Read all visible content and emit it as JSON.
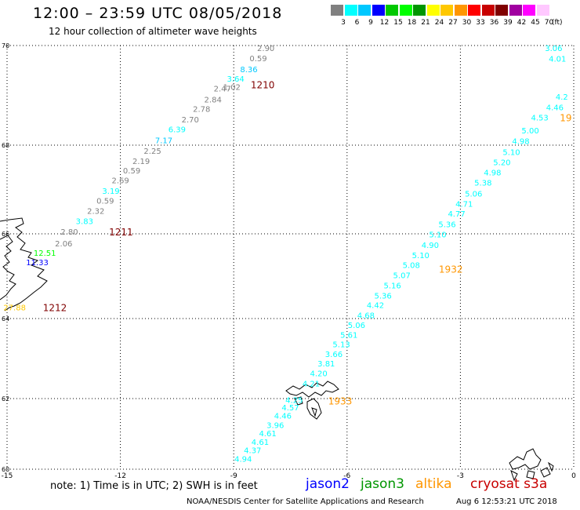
{
  "header": {
    "title": "12:00 – 23:59 UTC 08/05/2018",
    "subtitle": "12 hour collection of altimeter wave heights"
  },
  "color_scale": {
    "unit_label": "(ft)",
    "bins": [
      {
        "label": "3",
        "color": "#808080"
      },
      {
        "label": "6",
        "color": "#00ffff"
      },
      {
        "label": "9",
        "color": "#00c8ff"
      },
      {
        "label": "12",
        "color": "#0000ff"
      },
      {
        "label": "15",
        "color": "#00c800"
      },
      {
        "label": "18",
        "color": "#00ff00"
      },
      {
        "label": "21",
        "color": "#009600"
      },
      {
        "label": "24",
        "color": "#ffff00"
      },
      {
        "label": "27",
        "color": "#ffc800"
      },
      {
        "label": "30",
        "color": "#ff9600"
      },
      {
        "label": "33",
        "color": "#ff0000"
      },
      {
        "label": "36",
        "color": "#c80000"
      },
      {
        "label": "39",
        "color": "#800000"
      },
      {
        "label": "42",
        "color": "#a000a0"
      },
      {
        "label": "45",
        "color": "#ff00ff"
      },
      {
        "label": "70",
        "color": "#ffc8ff"
      }
    ]
  },
  "axes": {
    "x_ticks": [
      "-15",
      "-12",
      "-9",
      "-6",
      "-3",
      "0"
    ],
    "y_ticks": [
      "70",
      "68",
      "66",
      "64",
      "62",
      "60"
    ]
  },
  "track_labels": [
    {
      "text": "1210",
      "color": "#800000",
      "lon": -8.55,
      "lat": 69.22
    },
    {
      "text": "1211",
      "color": "#800000",
      "lon": -12.3,
      "lat": 66.05
    },
    {
      "text": "1212",
      "color": "#800000",
      "lon": -14.05,
      "lat": 64.27
    },
    {
      "text": "1932",
      "color": "#ff9600",
      "lon": -3.57,
      "lat": 65.18
    },
    {
      "text": "1933",
      "color": "#ff9600",
      "lon": -6.5,
      "lat": 61.95
    },
    {
      "text": "19",
      "color": "#ff9600",
      "lon": -0.05,
      "lat": 68.56
    }
  ],
  "observations": [
    {
      "v": "2.90",
      "c": "#808080",
      "lon": -8.15,
      "lat": 69.95
    },
    {
      "v": "0.59",
      "c": "#808080",
      "lon": -8.35,
      "lat": 69.75
    },
    {
      "v": "8.36",
      "c": "#00c8ff",
      "lon": -8.6,
      "lat": 69.53
    },
    {
      "v": "3.64",
      "c": "#00ffff",
      "lon": -8.95,
      "lat": 69.34
    },
    {
      "v": "2.47",
      "c": "#808080",
      "lon": -9.3,
      "lat": 69.14
    },
    {
      "v": "1.02",
      "c": "#808080",
      "lon": -9.05,
      "lat": 69.17
    },
    {
      "v": "2.84",
      "c": "#808080",
      "lon": -9.55,
      "lat": 68.92
    },
    {
      "v": "2.78",
      "c": "#808080",
      "lon": -9.85,
      "lat": 68.73
    },
    {
      "v": "2.70",
      "c": "#808080",
      "lon": -10.15,
      "lat": 68.52
    },
    {
      "v": "6.39",
      "c": "#00ffff",
      "lon": -10.5,
      "lat": 68.32
    },
    {
      "v": "7.17",
      "c": "#00c8ff",
      "lon": -10.85,
      "lat": 68.1
    },
    {
      "v": "2.25",
      "c": "#808080",
      "lon": -11.15,
      "lat": 67.88
    },
    {
      "v": "2.19",
      "c": "#808080",
      "lon": -11.45,
      "lat": 67.65
    },
    {
      "v": "0.59",
      "c": "#808080",
      "lon": -11.7,
      "lat": 67.43
    },
    {
      "v": "2.69",
      "c": "#808080",
      "lon": -12.0,
      "lat": 67.21
    },
    {
      "v": "3.19",
      "c": "#00ffff",
      "lon": -12.25,
      "lat": 66.97
    },
    {
      "v": "0.59",
      "c": "#808080",
      "lon": -12.4,
      "lat": 66.75
    },
    {
      "v": "2.32",
      "c": "#808080",
      "lon": -12.65,
      "lat": 66.52
    },
    {
      "v": "3.83",
      "c": "#00ffff",
      "lon": -12.95,
      "lat": 66.29
    },
    {
      "v": "2.80",
      "c": "#808080",
      "lon": -13.35,
      "lat": 66.05
    },
    {
      "v": "2.06",
      "c": "#808080",
      "lon": -13.5,
      "lat": 65.78
    },
    {
      "v": "12.51",
      "c": "#00ff00",
      "lon": -14.0,
      "lat": 65.56
    },
    {
      "v": "11.33",
      "c": "#0000ff",
      "lon": -14.2,
      "lat": 65.33
    },
    {
      "v": "27.88",
      "c": "#ffc800",
      "lon": -14.8,
      "lat": 64.27
    },
    {
      "v": "3.06",
      "c": "#00ffff",
      "lon": -0.3,
      "lat": 69.95
    },
    {
      "v": "4.01",
      "c": "#00ffff",
      "lon": -0.2,
      "lat": 69.74
    },
    {
      "v": "4.2",
      "c": "#00ffff",
      "lon": -0.15,
      "lat": 68.98
    },
    {
      "v": "4.46",
      "c": "#00ffff",
      "lon": -0.5,
      "lat": 68.76
    },
    {
      "v": "4.53",
      "c": "#00ffff",
      "lon": -0.9,
      "lat": 68.56
    },
    {
      "v": "5.00",
      "c": "#00ffff",
      "lon": -1.15,
      "lat": 68.3
    },
    {
      "v": "4.98",
      "c": "#00ffff",
      "lon": -1.4,
      "lat": 68.09
    },
    {
      "v": "5.10",
      "c": "#00ffff",
      "lon": -1.65,
      "lat": 67.85
    },
    {
      "v": "5.20",
      "c": "#00ffff",
      "lon": -1.9,
      "lat": 67.62
    },
    {
      "v": "4.98",
      "c": "#00ffff",
      "lon": -2.15,
      "lat": 67.39
    },
    {
      "v": "5.38",
      "c": "#00ffff",
      "lon": -2.4,
      "lat": 67.16
    },
    {
      "v": "5.06",
      "c": "#00ffff",
      "lon": -2.65,
      "lat": 66.91
    },
    {
      "v": "4.71",
      "c": "#00ffff",
      "lon": -2.9,
      "lat": 66.68
    },
    {
      "v": "4.77",
      "c": "#00ffff",
      "lon": -3.1,
      "lat": 66.46
    },
    {
      "v": "5.36",
      "c": "#00ffff",
      "lon": -3.35,
      "lat": 66.22
    },
    {
      "v": "5.10",
      "c": "#00ffff",
      "lon": -3.6,
      "lat": 65.99
    },
    {
      "v": "4.90",
      "c": "#00ffff",
      "lon": -3.8,
      "lat": 65.74
    },
    {
      "v": "5.10",
      "c": "#00ffff",
      "lon": -4.05,
      "lat": 65.5
    },
    {
      "v": "5.08",
      "c": "#00ffff",
      "lon": -4.3,
      "lat": 65.27
    },
    {
      "v": "5.07",
      "c": "#00ffff",
      "lon": -4.55,
      "lat": 65.03
    },
    {
      "v": "5.16",
      "c": "#00ffff",
      "lon": -4.8,
      "lat": 64.79
    },
    {
      "v": "5.36",
      "c": "#00ffff",
      "lon": -5.05,
      "lat": 64.55
    },
    {
      "v": "4.42",
      "c": "#00ffff",
      "lon": -5.25,
      "lat": 64.32
    },
    {
      "v": "4.68",
      "c": "#00ffff",
      "lon": -5.5,
      "lat": 64.08
    },
    {
      "v": "5.06",
      "c": "#00ffff",
      "lon": -5.75,
      "lat": 63.84
    },
    {
      "v": "5.61",
      "c": "#00ffff",
      "lon": -5.95,
      "lat": 63.6
    },
    {
      "v": "5.13",
      "c": "#00ffff",
      "lon": -6.15,
      "lat": 63.36
    },
    {
      "v": "3.66",
      "c": "#00ffff",
      "lon": -6.35,
      "lat": 63.12
    },
    {
      "v": "3.81",
      "c": "#00ffff",
      "lon": -6.55,
      "lat": 62.88
    },
    {
      "v": "4.20",
      "c": "#00ffff",
      "lon": -6.75,
      "lat": 62.64
    },
    {
      "v": "4.21",
      "c": "#00ffff",
      "lon": -6.95,
      "lat": 62.38
    },
    {
      "v": "4.57",
      "c": "#00ffff",
      "lon": -7.5,
      "lat": 61.76
    },
    {
      "v": "4.46",
      "c": "#00ffff",
      "lon": -7.7,
      "lat": 61.52
    },
    {
      "v": "3.96",
      "c": "#00ffff",
      "lon": -7.9,
      "lat": 61.26
    },
    {
      "v": "4.61",
      "c": "#00ffff",
      "lon": -8.1,
      "lat": 61.02
    },
    {
      "v": "4.61",
      "c": "#00ffff",
      "lon": -8.3,
      "lat": 60.78
    },
    {
      "v": "4.37",
      "c": "#00ffff",
      "lon": -8.5,
      "lat": 60.54
    },
    {
      "v": "4.94",
      "c": "#00ffff",
      "lon": -8.75,
      "lat": 60.3
    },
    {
      "v": "4.25",
      "c": "#00ffff",
      "lon": -7.4,
      "lat": 61.97
    }
  ],
  "footer": {
    "note": "note:  1) Time is in UTC;  2) SWH is in feet",
    "satellites": [
      {
        "name": "jason2",
        "color": "#0000ff"
      },
      {
        "name": "jason3",
        "color": "#009600"
      },
      {
        "name": "altika",
        "color": "#ff9600"
      },
      {
        "name": "cryosat s3a",
        "color": "#c80000"
      }
    ],
    "credit": "NOAA/NESDIS Center for Satellite Applications and Research",
    "timestamp": "Aug  6 12:53:21 UTC 2018"
  }
}
